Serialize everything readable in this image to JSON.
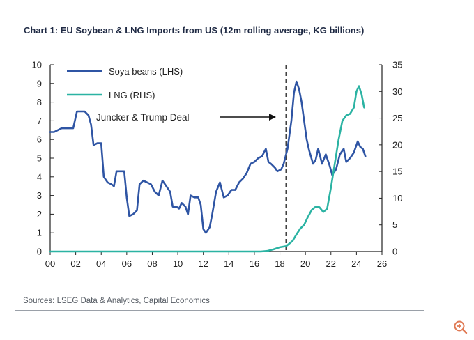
{
  "chart_data": {
    "type": "line",
    "title": "Chart 1: EU Soybean & LNG Imports from US (12m rolling average, KG billions)",
    "source": "Sources: LSEG Data & Analytics, Capital Economics",
    "x_tick_labels": [
      "00",
      "02",
      "04",
      "06",
      "08",
      "10",
      "12",
      "14",
      "16",
      "18",
      "20",
      "22",
      "24",
      "26"
    ],
    "xlim": [
      2000,
      2026
    ],
    "y_left": {
      "ticks": [
        0,
        1,
        2,
        3,
        4,
        5,
        6,
        7,
        8,
        9,
        10
      ],
      "ylim": [
        0,
        10
      ],
      "label": ""
    },
    "y_right": {
      "ticks": [
        0,
        5,
        10,
        15,
        20,
        25,
        30,
        35
      ],
      "ylim": [
        0,
        35
      ],
      "label": ""
    },
    "annotation": {
      "text": "Juncker & Trump Deal",
      "x": 2018.5
    },
    "series": [
      {
        "name": "Soya beans (LHS)",
        "axis": "left",
        "color": "#2f55a4",
        "points": [
          [
            2000.0,
            6.4
          ],
          [
            2000.3,
            6.4
          ],
          [
            2000.6,
            6.5
          ],
          [
            2000.9,
            6.6
          ],
          [
            2001.2,
            6.6
          ],
          [
            2001.5,
            6.6
          ],
          [
            2001.8,
            6.6
          ],
          [
            2002.1,
            7.5
          ],
          [
            2002.4,
            7.5
          ],
          [
            2002.7,
            7.5
          ],
          [
            2003.0,
            7.3
          ],
          [
            2003.2,
            6.8
          ],
          [
            2003.4,
            5.7
          ],
          [
            2003.7,
            5.8
          ],
          [
            2004.0,
            5.8
          ],
          [
            2004.2,
            4.0
          ],
          [
            2004.5,
            3.7
          ],
          [
            2004.8,
            3.6
          ],
          [
            2005.0,
            3.5
          ],
          [
            2005.2,
            4.3
          ],
          [
            2005.5,
            4.3
          ],
          [
            2005.8,
            4.3
          ],
          [
            2006.0,
            2.9
          ],
          [
            2006.2,
            1.9
          ],
          [
            2006.5,
            2.0
          ],
          [
            2006.8,
            2.2
          ],
          [
            2007.0,
            3.6
          ],
          [
            2007.3,
            3.8
          ],
          [
            2007.6,
            3.7
          ],
          [
            2007.9,
            3.6
          ],
          [
            2008.2,
            3.2
          ],
          [
            2008.5,
            3.0
          ],
          [
            2008.8,
            3.8
          ],
          [
            2009.1,
            3.5
          ],
          [
            2009.4,
            3.2
          ],
          [
            2009.6,
            2.4
          ],
          [
            2009.9,
            2.4
          ],
          [
            2010.1,
            2.3
          ],
          [
            2010.3,
            2.6
          ],
          [
            2010.6,
            2.4
          ],
          [
            2010.8,
            2.0
          ],
          [
            2011.0,
            3.0
          ],
          [
            2011.3,
            2.9
          ],
          [
            2011.6,
            2.9
          ],
          [
            2011.8,
            2.5
          ],
          [
            2012.0,
            1.2
          ],
          [
            2012.2,
            1.0
          ],
          [
            2012.5,
            1.3
          ],
          [
            2012.7,
            2.0
          ],
          [
            2013.0,
            3.2
          ],
          [
            2013.3,
            3.7
          ],
          [
            2013.6,
            2.9
          ],
          [
            2013.9,
            3.0
          ],
          [
            2014.2,
            3.3
          ],
          [
            2014.5,
            3.3
          ],
          [
            2014.8,
            3.7
          ],
          [
            2015.1,
            3.9
          ],
          [
            2015.4,
            4.2
          ],
          [
            2015.7,
            4.7
          ],
          [
            2016.0,
            4.8
          ],
          [
            2016.3,
            5.0
          ],
          [
            2016.6,
            5.1
          ],
          [
            2016.9,
            5.5
          ],
          [
            2017.1,
            4.8
          ],
          [
            2017.3,
            4.7
          ],
          [
            2017.6,
            4.5
          ],
          [
            2017.8,
            4.3
          ],
          [
            2018.1,
            4.4
          ],
          [
            2018.3,
            4.7
          ],
          [
            2018.6,
            5.5
          ],
          [
            2018.9,
            7.0
          ],
          [
            2019.1,
            8.5
          ],
          [
            2019.3,
            9.1
          ],
          [
            2019.5,
            8.7
          ],
          [
            2019.7,
            8.0
          ],
          [
            2019.9,
            7.0
          ],
          [
            2020.1,
            6.0
          ],
          [
            2020.3,
            5.4
          ],
          [
            2020.6,
            4.7
          ],
          [
            2020.8,
            4.9
          ],
          [
            2021.0,
            5.5
          ],
          [
            2021.3,
            4.7
          ],
          [
            2021.6,
            5.2
          ],
          [
            2021.9,
            4.6
          ],
          [
            2022.1,
            4.1
          ],
          [
            2022.4,
            4.4
          ],
          [
            2022.7,
            5.2
          ],
          [
            2023.0,
            5.5
          ],
          [
            2023.2,
            4.8
          ],
          [
            2023.5,
            5.0
          ],
          [
            2023.8,
            5.3
          ],
          [
            2024.1,
            5.9
          ],
          [
            2024.3,
            5.6
          ],
          [
            2024.5,
            5.5
          ],
          [
            2024.7,
            5.1
          ]
        ]
      },
      {
        "name": "LNG (RHS)",
        "axis": "right",
        "color": "#2bb3a3",
        "points": [
          [
            2000.0,
            0.0
          ],
          [
            2016.5,
            0.0
          ],
          [
            2017.0,
            0.1
          ],
          [
            2017.5,
            0.4
          ],
          [
            2018.0,
            0.8
          ],
          [
            2018.5,
            1.0
          ],
          [
            2019.0,
            2.0
          ],
          [
            2019.3,
            3.2
          ],
          [
            2019.6,
            4.3
          ],
          [
            2019.9,
            5.0
          ],
          [
            2020.2,
            6.5
          ],
          [
            2020.5,
            7.8
          ],
          [
            2020.8,
            8.4
          ],
          [
            2021.1,
            8.3
          ],
          [
            2021.4,
            7.4
          ],
          [
            2021.7,
            8.0
          ],
          [
            2022.0,
            12.0
          ],
          [
            2022.3,
            16.5
          ],
          [
            2022.6,
            21.0
          ],
          [
            2022.9,
            24.5
          ],
          [
            2023.2,
            25.5
          ],
          [
            2023.5,
            25.8
          ],
          [
            2023.8,
            27.0
          ],
          [
            2024.0,
            30.0
          ],
          [
            2024.2,
            31.0
          ],
          [
            2024.4,
            29.5
          ],
          [
            2024.6,
            27.0
          ]
        ]
      }
    ],
    "legend_position": "top-left"
  }
}
